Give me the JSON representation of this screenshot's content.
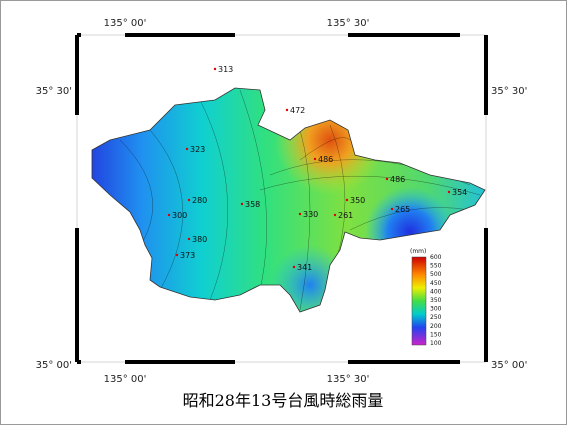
{
  "caption": "昭和28年13号台風時総雨量",
  "axes": {
    "top": [
      "135° 00'",
      "135° 30'"
    ],
    "bottom": [
      "135° 00'",
      "135° 30'"
    ],
    "left": [
      "35° 30'",
      "35° 00'"
    ],
    "right": [
      "35° 30'",
      "35° 00'"
    ]
  },
  "stations": [
    313,
    472,
    323,
    486,
    486,
    354,
    350,
    330,
    261,
    265,
    300,
    280,
    358,
    380,
    373,
    341
  ],
  "legend": {
    "unit": "(mm)",
    "ticks": [
      600,
      550,
      500,
      450,
      400,
      350,
      300,
      250,
      200,
      150,
      100
    ]
  }
}
